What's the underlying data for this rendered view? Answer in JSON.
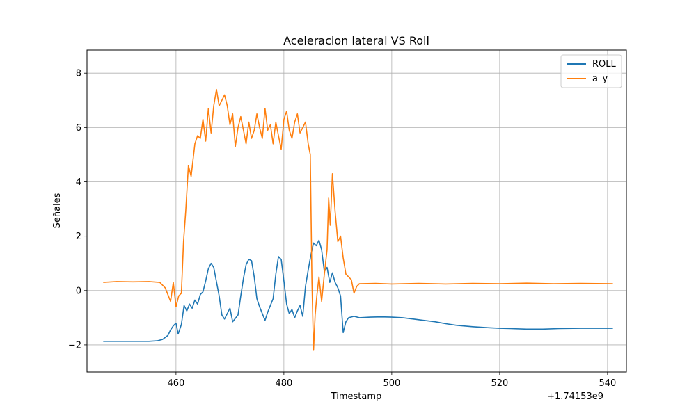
{
  "chart_data": {
    "type": "line",
    "title": "Aceleracion lateral VS Roll",
    "xlabel": "Timestamp",
    "ylabel": "Señales",
    "x_offset_label": "+1.74153e9",
    "xlim": [
      443.5,
      543.5
    ],
    "ylim": [
      -3.0,
      8.85
    ],
    "x_ticks": [
      460,
      480,
      500,
      520,
      540
    ],
    "y_ticks": [
      -2,
      0,
      2,
      4,
      6,
      8
    ],
    "x_tick_labels": [
      "460",
      "480",
      "500",
      "520",
      "540"
    ],
    "y_tick_labels": [
      "−2",
      "0",
      "2",
      "4",
      "6",
      "8"
    ],
    "grid": true,
    "legend_position": "top-right",
    "series": [
      {
        "name": "ROLL",
        "color": "#1f77b4",
        "x": [
          446.5,
          450,
          452,
          455,
          456.5,
          457.5,
          458.5,
          459,
          459.5,
          460,
          460.4,
          461,
          461.5,
          462,
          462.5,
          463,
          463.5,
          464,
          464.5,
          465,
          465.5,
          466,
          466.5,
          467,
          468,
          468.5,
          469,
          470,
          470.5,
          471.5,
          472,
          472.5,
          473,
          473.5,
          474,
          474.5,
          475,
          475.5,
          476.5,
          477,
          477.5,
          478,
          478.5,
          479,
          479.5,
          480,
          480.5,
          481,
          481.5,
          482,
          482.5,
          483,
          483.5,
          484,
          484.5,
          485,
          485.5,
          486,
          486.5,
          487,
          487.5,
          488,
          488.5,
          489,
          489.5,
          490,
          490.5,
          491,
          491.5,
          492,
          493,
          494,
          496,
          498,
          500,
          502,
          504,
          506,
          508,
          510,
          512,
          515,
          518,
          520,
          522,
          525,
          528,
          531,
          535,
          538,
          541
        ],
        "y": [
          -1.87,
          -1.87,
          -1.87,
          -1.87,
          -1.85,
          -1.8,
          -1.65,
          -1.45,
          -1.3,
          -1.2,
          -1.6,
          -1.25,
          -0.55,
          -0.75,
          -0.5,
          -0.65,
          -0.35,
          -0.5,
          -0.15,
          -0.05,
          0.35,
          0.8,
          1.0,
          0.85,
          -0.2,
          -0.9,
          -1.05,
          -0.65,
          -1.15,
          -0.9,
          -0.2,
          0.45,
          0.95,
          1.15,
          1.1,
          0.5,
          -0.3,
          -0.6,
          -1.1,
          -0.8,
          -0.55,
          -0.3,
          0.6,
          1.25,
          1.15,
          0.35,
          -0.5,
          -0.85,
          -0.7,
          -1.0,
          -0.75,
          -0.55,
          -0.95,
          0.15,
          0.75,
          1.3,
          1.75,
          1.65,
          1.85,
          1.5,
          0.7,
          0.85,
          0.3,
          0.65,
          0.3,
          0.1,
          -0.2,
          -1.55,
          -1.15,
          -1.0,
          -0.95,
          -1.0,
          -0.98,
          -0.97,
          -0.98,
          -1.0,
          -1.05,
          -1.1,
          -1.15,
          -1.22,
          -1.28,
          -1.33,
          -1.37,
          -1.39,
          -1.4,
          -1.42,
          -1.42,
          -1.4,
          -1.39,
          -1.39,
          -1.39
        ]
      },
      {
        "name": "a_y",
        "color": "#ff7f0e",
        "x": [
          446.5,
          449,
          452,
          455,
          457,
          458,
          459,
          459.5,
          460,
          460.5,
          461,
          461.4,
          461.8,
          462.3,
          462.8,
          463.5,
          464,
          464.5,
          465,
          465.5,
          466,
          466.5,
          467,
          467.5,
          468,
          468.5,
          469,
          469.5,
          470,
          470.5,
          471,
          471.5,
          472,
          472.5,
          473,
          473.5,
          474,
          474.5,
          475,
          475.5,
          476,
          476.5,
          477,
          477.5,
          478,
          478.5,
          479,
          479.5,
          480,
          480.5,
          481,
          481.5,
          482,
          482.5,
          483,
          483.5,
          484,
          484.5,
          484.9,
          485.2,
          485.5,
          485.8,
          486.1,
          486.5,
          487,
          487.5,
          488,
          488.3,
          488.6,
          489,
          489.5,
          490,
          490.5,
          491,
          491.5,
          492,
          492.5,
          493,
          493.5,
          494,
          497,
          500,
          505,
          510,
          515,
          520,
          525,
          530,
          535,
          541
        ],
        "y": [
          0.3,
          0.33,
          0.32,
          0.33,
          0.3,
          0.1,
          -0.4,
          0.3,
          -0.6,
          -0.2,
          -0.1,
          1.8,
          2.9,
          4.6,
          4.2,
          5.4,
          5.7,
          5.6,
          6.3,
          5.5,
          6.7,
          5.8,
          6.8,
          7.4,
          6.8,
          7.0,
          7.2,
          6.8,
          6.1,
          6.5,
          5.3,
          6.0,
          6.4,
          5.9,
          5.4,
          6.2,
          5.6,
          5.9,
          6.5,
          6.0,
          5.6,
          6.7,
          5.9,
          6.1,
          5.4,
          6.2,
          5.7,
          5.2,
          6.3,
          6.6,
          5.9,
          5.6,
          6.2,
          6.5,
          5.8,
          6.0,
          6.2,
          5.4,
          5.0,
          0.3,
          -2.2,
          -0.9,
          -0.2,
          0.5,
          -0.4,
          0.6,
          1.5,
          3.4,
          2.4,
          4.3,
          2.9,
          1.8,
          2.0,
          1.2,
          0.6,
          0.5,
          0.4,
          -0.1,
          0.15,
          0.25,
          0.26,
          0.24,
          0.26,
          0.24,
          0.26,
          0.25,
          0.27,
          0.25,
          0.26,
          0.25
        ]
      }
    ]
  }
}
